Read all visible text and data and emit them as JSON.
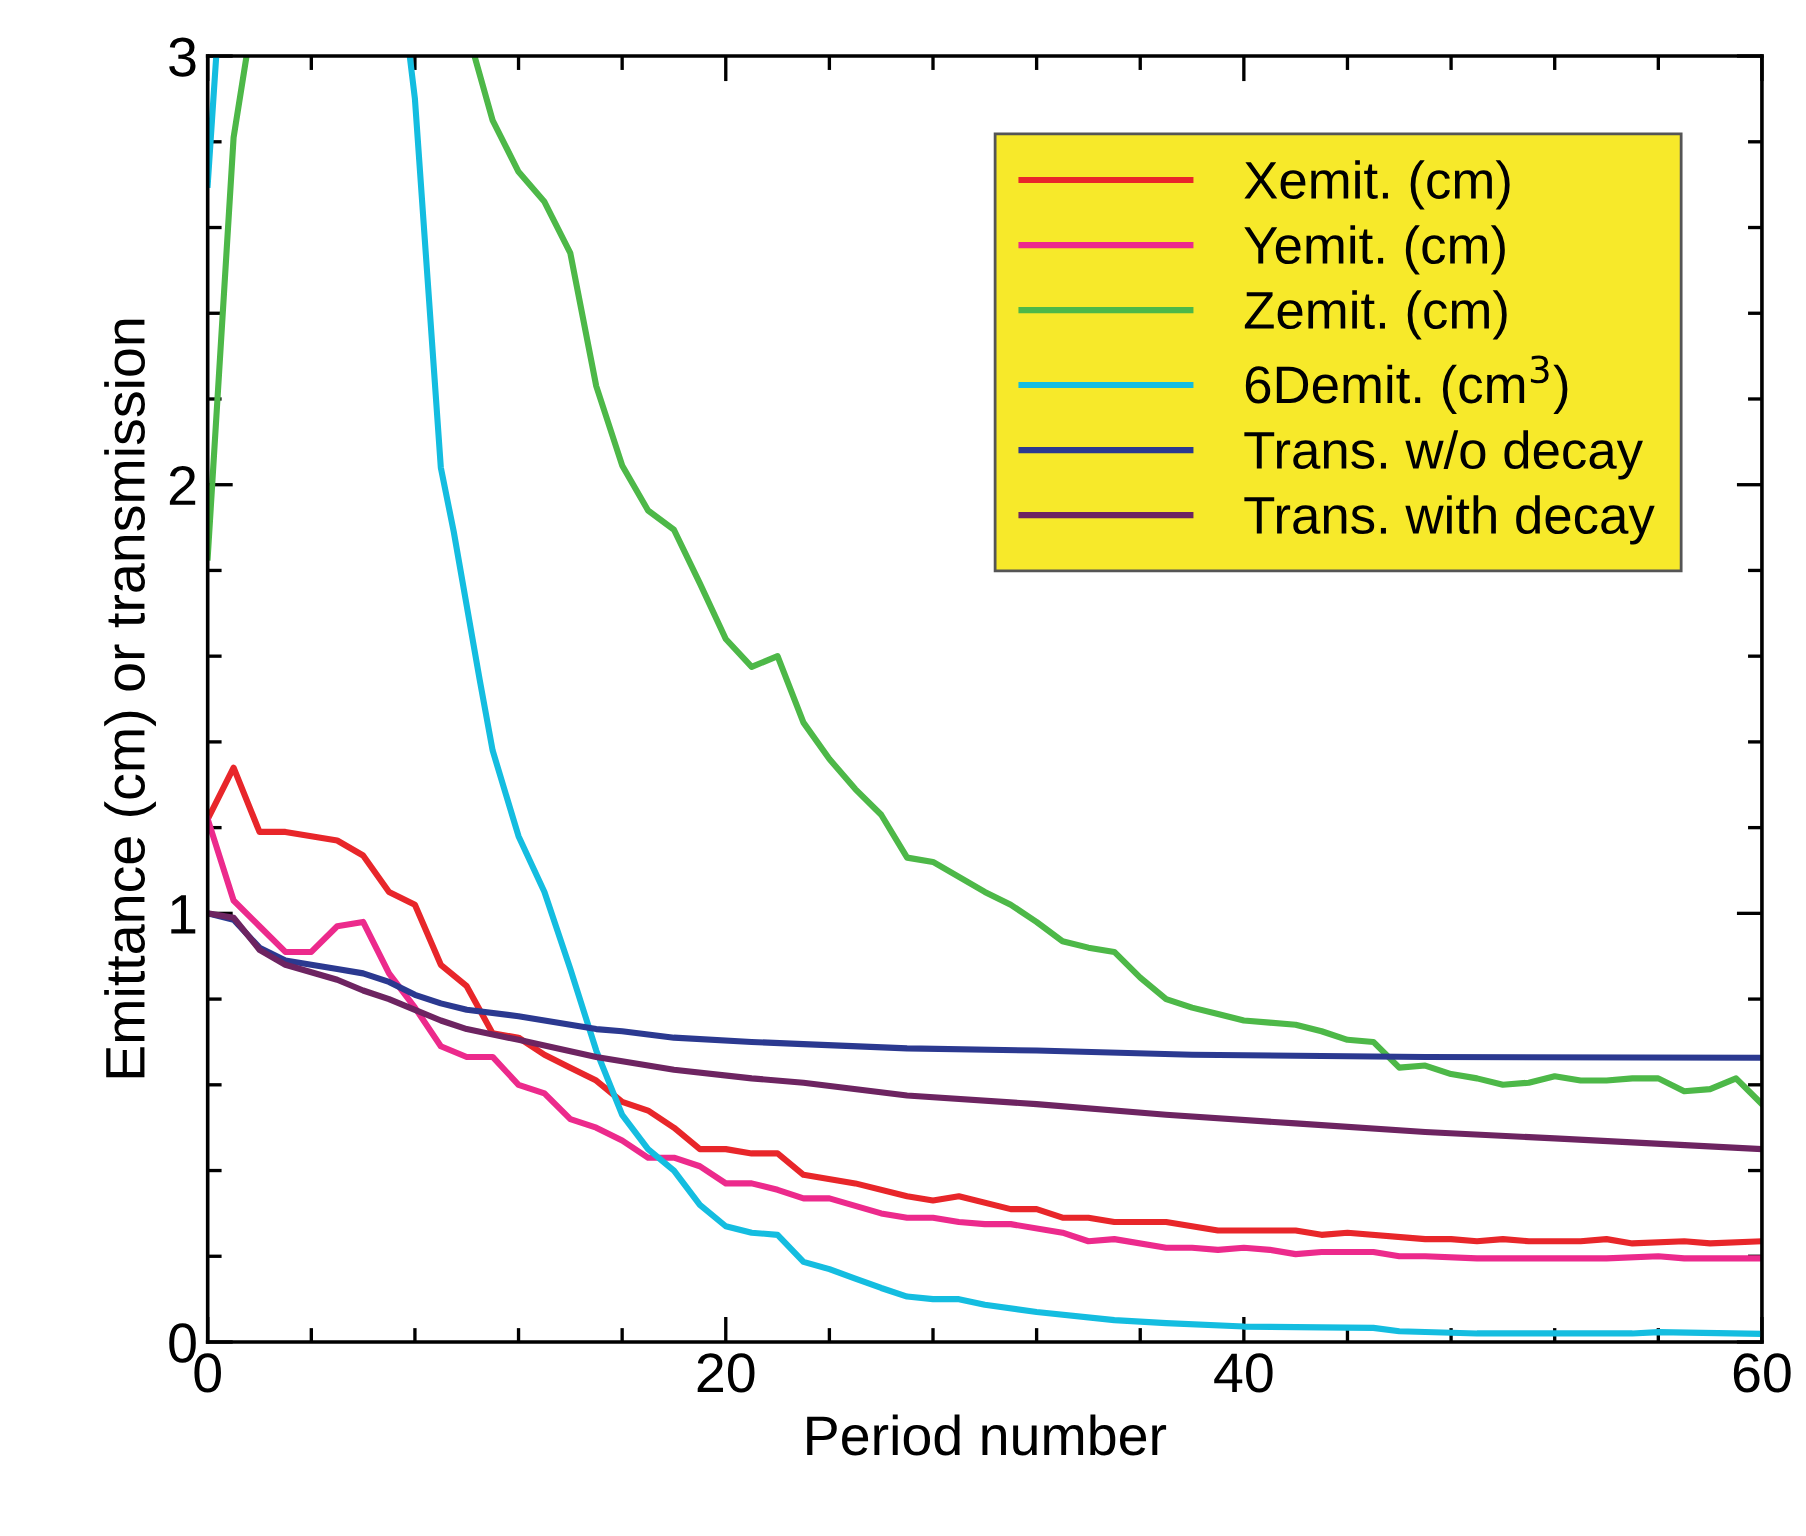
{
  "chart_data": {
    "type": "line",
    "xlabel": "Period number",
    "ylabel": "Emittance (cm) or transmission",
    "xlim": [
      0,
      60
    ],
    "ylim": [
      0,
      3
    ],
    "xticks": [
      0,
      {
        "value": 4,
        "label": null
      },
      {
        "value": 8,
        "label": null
      },
      {
        "value": 12,
        "label": null
      },
      {
        "value": 16,
        "label": null
      },
      20,
      {
        "value": 24,
        "label": null
      },
      {
        "value": 28,
        "label": null
      },
      {
        "value": 32,
        "label": null
      },
      {
        "value": 36,
        "label": null
      },
      40,
      {
        "value": 44,
        "label": null
      },
      {
        "value": 48,
        "label": null
      },
      {
        "value": 52,
        "label": null
      },
      {
        "value": 56,
        "label": null
      },
      60
    ],
    "yticks": [
      0,
      {
        "value": 0.2,
        "label": null
      },
      {
        "value": 0.4,
        "label": null
      },
      {
        "value": 0.6,
        "label": null
      },
      {
        "value": 0.8,
        "label": null
      },
      1,
      {
        "value": 1.2,
        "label": null
      },
      {
        "value": 1.4,
        "label": null
      },
      {
        "value": 1.6,
        "label": null
      },
      {
        "value": 1.8,
        "label": null
      },
      2,
      {
        "value": 2.2,
        "label": null
      },
      {
        "value": 2.4,
        "label": null
      },
      {
        "value": 2.6,
        "label": null
      },
      {
        "value": 2.8,
        "label": null
      },
      3
    ],
    "grid": false,
    "legend": "top right",
    "marker": "none",
    "line_style": "solid",
    "series": [
      {
        "name": "Xemit. (cm)",
        "color": "#e8262a",
        "x": [
          0,
          1,
          2,
          3,
          4,
          5,
          6,
          7,
          8,
          9,
          10,
          11,
          12,
          13,
          14,
          15,
          16,
          17,
          18,
          19,
          20,
          21,
          22,
          23,
          25,
          27,
          28,
          29,
          31,
          32,
          33,
          34,
          35,
          37,
          39,
          42,
          43,
          44,
          47,
          48,
          49,
          50,
          51,
          53,
          54,
          55,
          57,
          58,
          60
        ],
        "values": [
          1.22,
          1.34,
          1.19,
          1.19,
          1.18,
          1.17,
          1.135,
          1.05,
          1.02,
          0.88,
          0.83,
          0.72,
          0.71,
          0.67,
          0.64,
          0.61,
          0.56,
          0.54,
          0.5,
          0.45,
          0.45,
          0.44,
          0.44,
          0.39,
          0.37,
          0.34,
          0.33,
          0.34,
          0.31,
          0.31,
          0.29,
          0.29,
          0.28,
          0.28,
          0.26,
          0.26,
          0.25,
          0.255,
          0.24,
          0.24,
          0.235,
          0.24,
          0.235,
          0.235,
          0.24,
          0.23,
          0.235,
          0.23,
          0.235
        ]
      },
      {
        "name": "Yemit. (cm)",
        "color": "#ec2a8c",
        "x": [
          0,
          1,
          2,
          3,
          4,
          5,
          6,
          7,
          8,
          9,
          10,
          11,
          12,
          13,
          14,
          15,
          16,
          17,
          18,
          19,
          20,
          21,
          22,
          23,
          24,
          26,
          27,
          28,
          29,
          30,
          31,
          33,
          34,
          35,
          37,
          38,
          39,
          40,
          41,
          42,
          43,
          45,
          46,
          47,
          49,
          51,
          54,
          56,
          57,
          60
        ],
        "values": [
          1.22,
          1.03,
          0.97,
          0.91,
          0.91,
          0.97,
          0.98,
          0.86,
          0.78,
          0.69,
          0.665,
          0.665,
          0.6,
          0.58,
          0.52,
          0.5,
          0.47,
          0.43,
          0.43,
          0.41,
          0.37,
          0.37,
          0.355,
          0.335,
          0.335,
          0.3,
          0.29,
          0.29,
          0.28,
          0.275,
          0.275,
          0.255,
          0.235,
          0.24,
          0.22,
          0.22,
          0.215,
          0.22,
          0.215,
          0.205,
          0.21,
          0.21,
          0.2,
          0.2,
          0.195,
          0.195,
          0.195,
          0.2,
          0.195,
          0.195
        ]
      },
      {
        "name": "Zemit. (cm)",
        "color": "#4db848",
        "x": [
          0,
          1,
          1.5,
          5,
          10.3,
          11,
          12,
          13,
          14,
          15,
          16,
          17,
          18,
          19,
          20,
          21,
          22,
          23,
          24,
          25,
          26,
          27,
          28,
          29,
          30,
          31,
          32,
          33,
          34,
          35,
          36,
          37,
          38,
          39,
          40,
          41,
          42,
          43,
          44,
          45,
          46,
          47,
          48,
          49,
          50,
          51,
          52,
          53,
          54,
          55,
          56,
          57,
          58,
          59,
          60
        ],
        "values": [
          1.83,
          2.81,
          3.0,
          null,
          3.0,
          2.85,
          2.73,
          2.66,
          2.54,
          2.23,
          2.045,
          1.94,
          1.895,
          1.77,
          1.64,
          1.575,
          1.6,
          1.445,
          1.36,
          1.29,
          1.23,
          1.13,
          1.12,
          1.085,
          1.05,
          1.02,
          0.98,
          0.935,
          0.92,
          0.91,
          0.85,
          0.8,
          0.78,
          0.765,
          0.75,
          0.745,
          0.74,
          0.725,
          0.705,
          0.7,
          0.64,
          0.645,
          0.625,
          0.615,
          0.6,
          0.605,
          0.62,
          0.61,
          0.61,
          0.615,
          0.615,
          0.585,
          0.59,
          0.615,
          0.555
        ]
      },
      {
        "name": "6Demit. (cm$^{3}$)",
        "color": "#14bde0",
        "x": [
          0,
          0.33,
          4,
          7.8,
          8,
          9,
          9.5,
          10.5,
          11,
          12,
          13,
          14,
          15,
          16,
          17,
          18,
          19,
          20,
          21,
          22,
          23,
          24,
          25,
          26,
          27,
          28,
          29,
          30,
          32,
          35,
          37,
          40,
          45,
          46,
          49,
          55,
          56,
          60
        ],
        "values": [
          2.7,
          3.0,
          null,
          3.0,
          2.9,
          2.04,
          1.89,
          1.545,
          1.38,
          1.18,
          1.05,
          0.87,
          0.68,
          0.53,
          0.45,
          0.4,
          0.32,
          0.27,
          0.255,
          0.25,
          0.187,
          0.17,
          0.148,
          0.126,
          0.106,
          0.1,
          0.1,
          0.087,
          0.07,
          0.051,
          0.044,
          0.036,
          0.033,
          0.025,
          0.02,
          0.02,
          0.023,
          0.019
        ]
      },
      {
        "name": "Trans. w/o decay",
        "color": "#2b3990",
        "x": [
          0,
          1,
          2,
          3,
          5,
          6,
          7,
          8,
          9,
          10,
          12,
          15,
          16,
          18,
          21,
          23,
          27,
          32,
          38,
          47,
          60
        ],
        "values": [
          1.0,
          0.985,
          0.92,
          0.89,
          0.87,
          0.86,
          0.84,
          0.81,
          0.79,
          0.775,
          0.76,
          0.73,
          0.725,
          0.71,
          0.7,
          0.695,
          0.685,
          0.68,
          0.67,
          0.665,
          0.663
        ]
      },
      {
        "name": "Trans. with decay",
        "color": "#6d2461",
        "x": [
          0,
          1,
          2,
          3,
          5,
          6,
          7,
          8,
          9,
          10,
          12,
          15,
          18,
          21,
          23,
          27,
          32,
          37,
          42,
          47,
          52,
          60
        ],
        "values": [
          1.0,
          0.99,
          0.915,
          0.88,
          0.845,
          0.82,
          0.8,
          0.775,
          0.75,
          0.73,
          0.705,
          0.665,
          0.635,
          0.615,
          0.605,
          0.575,
          0.555,
          0.53,
          0.51,
          0.49,
          0.475,
          0.45
        ]
      }
    ]
  }
}
